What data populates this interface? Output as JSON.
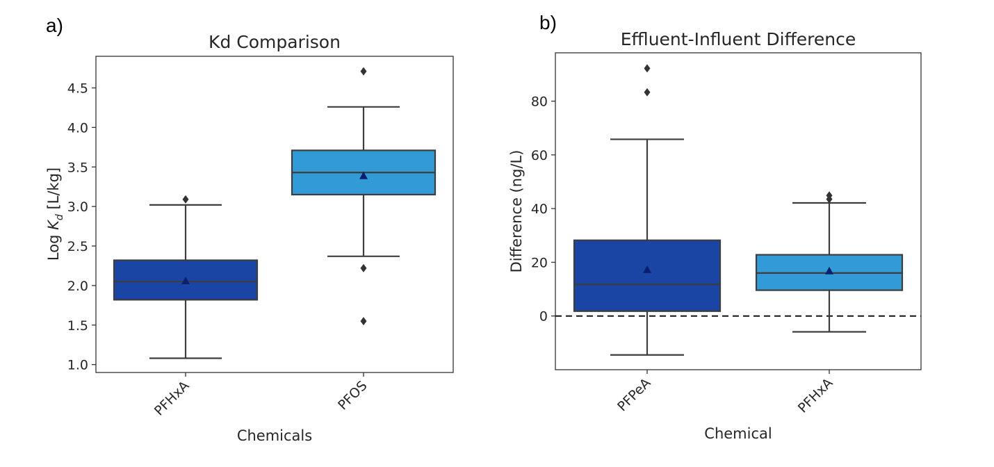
{
  "panel_labels": [
    "a)",
    "b)"
  ],
  "colors": {
    "dark_blue": "#1a45a5",
    "light_blue": "#329ad6",
    "mean_marker": "#0c1f6e"
  },
  "chart_data": [
    {
      "type": "box",
      "title": "Kd Comparison",
      "xlabel": "Chemicals",
      "ylabel_prefix": "Log ",
      "ylabel_symbol": "K",
      "ylabel_subscript": "d",
      "ylabel_suffix": " [L/kg]",
      "ylim": [
        0.9,
        4.9
      ],
      "yticks": [
        1.0,
        1.5,
        2.0,
        2.5,
        3.0,
        3.5,
        4.0,
        4.5
      ],
      "ytick_labels": [
        "1.0",
        "1.5",
        "2.0",
        "2.5",
        "3.0",
        "3.5",
        "4.0",
        "4.5"
      ],
      "grid": false,
      "zero_line": false,
      "categories": [
        {
          "name": "PFHxA",
          "color": "#1a45a5",
          "whisker_low": 1.08,
          "q1": 1.82,
          "median": 2.05,
          "q3": 2.32,
          "whisker_high": 3.02,
          "mean": 2.06,
          "outliers": [
            3.09
          ]
        },
        {
          "name": "PFOS",
          "color": "#329ad6",
          "whisker_low": 2.37,
          "q1": 3.15,
          "median": 3.43,
          "q3": 3.71,
          "whisker_high": 4.26,
          "mean": 3.39,
          "outliers": [
            4.71,
            2.22,
            1.55
          ]
        }
      ]
    },
    {
      "type": "box",
      "title": "Effluent-Influent Difference",
      "xlabel": "Chemical",
      "ylabel": "Difference (ng/L)",
      "ylim": [
        -20,
        98
      ],
      "yticks": [
        0,
        20,
        40,
        60,
        80
      ],
      "ytick_labels": [
        "0",
        "20",
        "40",
        "60",
        "80"
      ],
      "grid": false,
      "zero_line": true,
      "categories": [
        {
          "name": "PFPeA",
          "color": "#1a45a5",
          "whisker_low": -14.5,
          "q1": 1.8,
          "median": 11.8,
          "q3": 28.2,
          "whisker_high": 65.8,
          "mean": 17.3,
          "outliers": [
            92.2,
            83.3
          ]
        },
        {
          "name": "PFHxA",
          "color": "#329ad6",
          "whisker_low": -5.9,
          "q1": 9.6,
          "median": 16.0,
          "q3": 22.8,
          "whisker_high": 42.1,
          "mean": 16.8,
          "outliers": [
            44.9,
            43.5
          ]
        }
      ]
    }
  ]
}
